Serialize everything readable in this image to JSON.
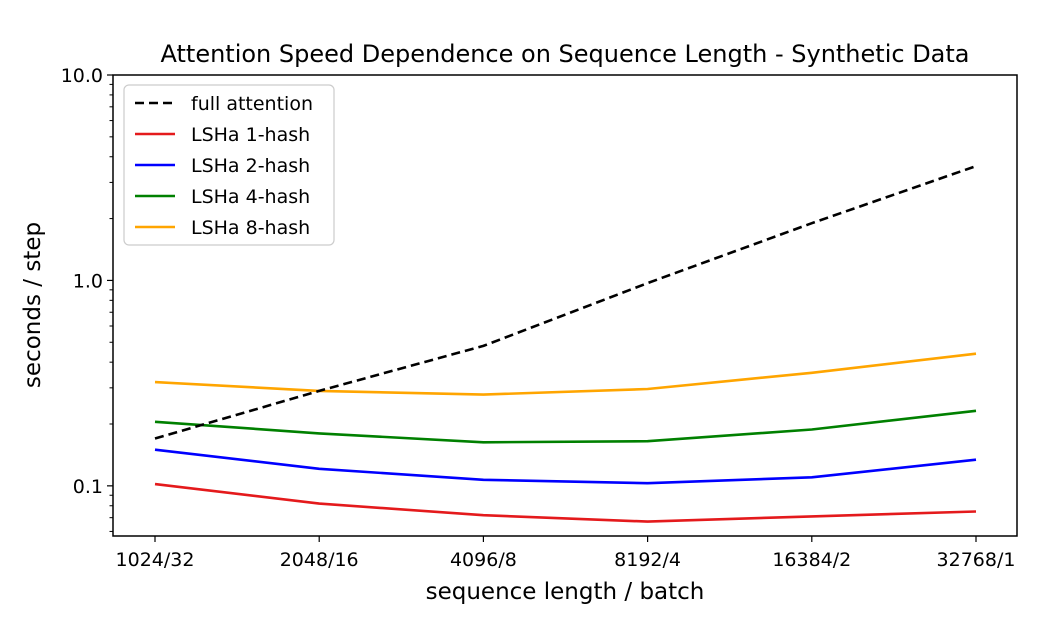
{
  "chart_data": {
    "type": "line",
    "title": "Attention Speed Dependence on Sequence Length - Synthetic Data",
    "xlabel": "sequence length / batch",
    "ylabel": "seconds / step",
    "yscale": "log",
    "ylim": [
      0.057,
      10.0
    ],
    "yticks": [
      "0.1",
      "1.0",
      "10.0"
    ],
    "categories": [
      "1024/32",
      "2048/16",
      "4096/8",
      "8192/4",
      "16384/2",
      "32768/1"
    ],
    "grid": false,
    "legend_position": "top-left",
    "series": [
      {
        "name": "full attention",
        "color": "#000000",
        "dash": true,
        "values": [
          0.17,
          0.29,
          0.48,
          0.97,
          1.9,
          3.6
        ]
      },
      {
        "name": "LSHa 1-hash",
        "color": "#e41a1c",
        "dash": false,
        "values": [
          0.102,
          0.082,
          0.072,
          0.067,
          0.071,
          0.075
        ]
      },
      {
        "name": "LSHa 2-hash",
        "color": "#0000ff",
        "dash": false,
        "values": [
          0.15,
          0.121,
          0.107,
          0.103,
          0.11,
          0.134
        ]
      },
      {
        "name": "LSHa 4-hash",
        "color": "#008000",
        "dash": false,
        "values": [
          0.205,
          0.18,
          0.163,
          0.165,
          0.188,
          0.232
        ]
      },
      {
        "name": "LSHa 8-hash",
        "color": "#ffa500",
        "dash": false,
        "values": [
          0.32,
          0.29,
          0.278,
          0.296,
          0.355,
          0.44
        ]
      }
    ]
  }
}
